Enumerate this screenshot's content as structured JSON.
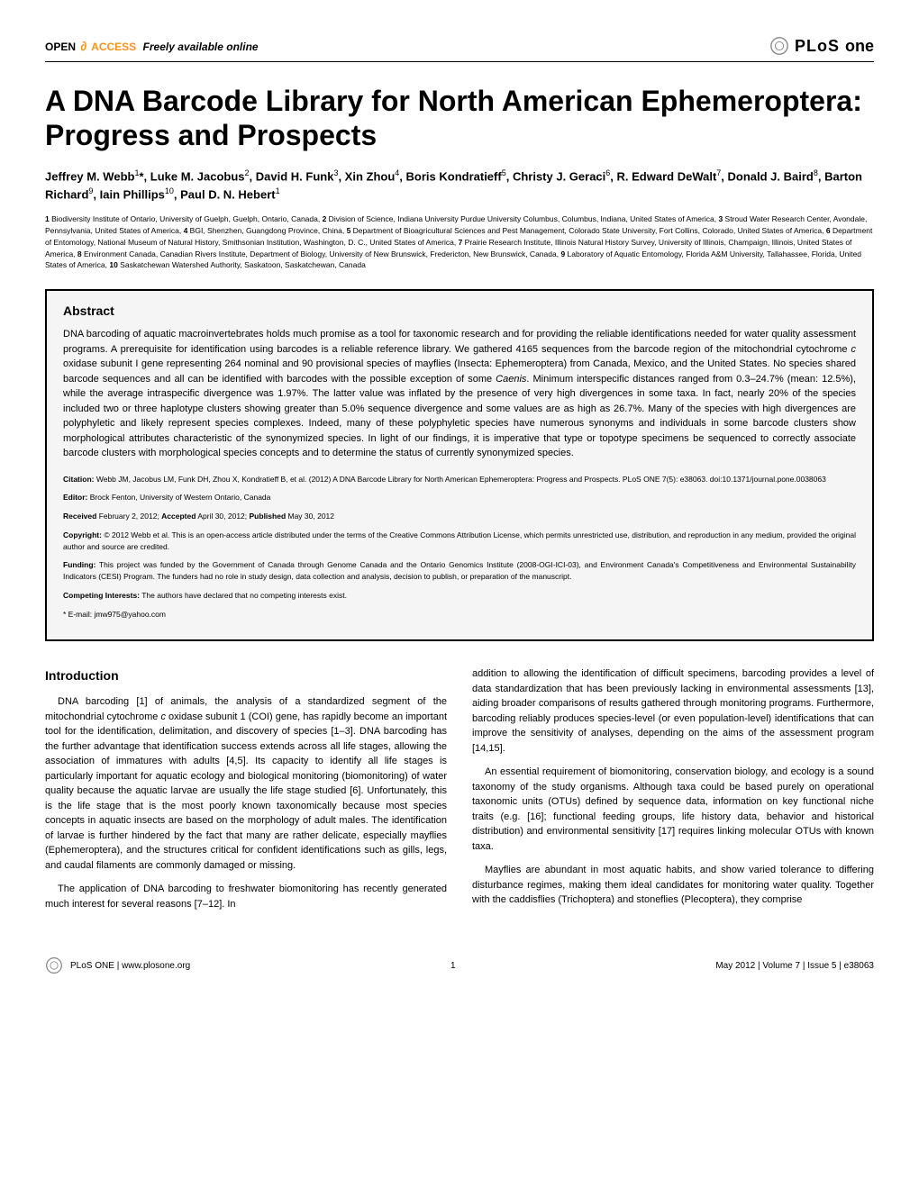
{
  "header": {
    "open_text": "OPEN",
    "access_text": "ACCESS",
    "freely_text": "Freely available online",
    "journal_plos": "PLoS",
    "journal_one": "one"
  },
  "title": "A DNA Barcode Library for North American Ephemeroptera: Progress and Prospects",
  "authors_html": "Jeffrey M. Webb<sup>1</sup>*, Luke M. Jacobus<sup>2</sup>, David H. Funk<sup>3</sup>, Xin Zhou<sup>4</sup>, Boris Kondratieff<sup>5</sup>, Christy J. Geraci<sup>6</sup>, R. Edward DeWalt<sup>7</sup>, Donald J. Baird<sup>8</sup>, Barton Richard<sup>9</sup>, Iain Phillips<sup>10</sup>, Paul D. N. Hebert<sup>1</sup>",
  "affiliations_html": "<b>1</b> Biodiversity Institute of Ontario, University of Guelph, Guelph, Ontario, Canada, <b>2</b> Division of Science, Indiana University Purdue University Columbus, Columbus, Indiana, United States of America, <b>3</b> Stroud Water Research Center, Avondale, Pennsylvania, United States of America, <b>4</b> BGI, Shenzhen, Guangdong Province, China, <b>5</b> Department of Bioagricultural Sciences and Pest Management, Colorado State University, Fort Collins, Colorado, United States of America, <b>6</b> Department of Entomology, National Museum of Natural History, Smithsonian Institution, Washington, D. C., United States of America, <b>7</b> Prairie Research Institute, Illinois Natural History Survey, University of Illinois, Champaign, Illinois, United States of America, <b>8</b> Environment Canada, Canadian Rivers Institute, Department of Biology, University of New Brunswick, Fredericton, New Brunswick, Canada, <b>9</b> Laboratory of Aquatic Entomology, Florida A&M University, Tallahassee, Florida, United States of America, <b>10</b> Saskatchewan Watershed Authority, Saskatoon, Saskatchewan, Canada",
  "abstract": {
    "heading": "Abstract",
    "text_html": "DNA barcoding of aquatic macroinvertebrates holds much promise as a tool for taxonomic research and for providing the reliable identifications needed for water quality assessment programs. A prerequisite for identification using barcodes is a reliable reference library. We gathered 4165 sequences from the barcode region of the mitochondrial cytochrome <i>c</i> oxidase subunit I gene representing 264 nominal and 90 provisional species of mayflies (Insecta: Ephemeroptera) from Canada, Mexico, and the United States. No species shared barcode sequences and all can be identified with barcodes with the possible exception of some <i>Caenis</i>. Minimum interspecific distances ranged from 0.3–24.7% (mean: 12.5%), while the average intraspecific divergence was 1.97%. The latter value was inflated by the presence of very high divergences in some taxa. In fact, nearly 20% of the species included two or three haplotype clusters showing greater than 5.0% sequence divergence and some values are as high as 26.7%. Many of the species with high divergences are polyphyletic and likely represent species complexes. Indeed, many of these polyphyletic species have numerous synonyms and individuals in some barcode clusters show morphological attributes characteristic of the synonymized species. In light of our findings, it is imperative that type or topotype specimens be sequenced to correctly associate barcode clusters with morphological species concepts and to determine the status of currently synonymized species.",
    "citation_html": "<b>Citation:</b> Webb JM, Jacobus LM, Funk DH, Zhou X, Kondratieff B, et al. (2012) A DNA Barcode Library for North American Ephemeroptera: Progress and Prospects. PLoS ONE 7(5): e38063. doi:10.1371/journal.pone.0038063",
    "editor_html": "<b>Editor:</b> Brock Fenton, University of Western Ontario, Canada",
    "received_html": "<b>Received</b> February 2, 2012; <b>Accepted</b> April 30, 2012; <b>Published</b> May 30, 2012",
    "copyright_html": "<b>Copyright:</b> © 2012 Webb et al. This is an open-access article distributed under the terms of the Creative Commons Attribution License, which permits unrestricted use, distribution, and reproduction in any medium, provided the original author and source are credited.",
    "funding_html": "<b>Funding:</b> This project was funded by the Government of Canada through Genome Canada and the Ontario Genomics Institute (2008-OGI-ICI-03), and Environment Canada's Competitiveness and Environmental Sustainability Indicators (CESI) Program. The funders had no role in study design, data collection and analysis, decision to publish, or preparation of the manuscript.",
    "competing_html": "<b>Competing Interests:</b> The authors have declared that no competing interests exist.",
    "email_html": "* E-mail: jmw975@yahoo.com"
  },
  "introduction": {
    "heading": "Introduction",
    "col1_p1_html": "DNA barcoding [1] of animals, the analysis of a standardized segment of the mitochondrial cytochrome <i>c</i> oxidase subunit 1 (COI) gene, has rapidly become an important tool for the identification, delimitation, and discovery of species [1–3]. DNA barcoding has the further advantage that identification success extends across all life stages, allowing the association of immatures with adults [4,5]. Its capacity to identify all life stages is particularly important for aquatic ecology and biological monitoring (biomonitoring) of water quality because the aquatic larvae are usually the life stage studied [6]. Unfortunately, this is the life stage that is the most poorly known taxonomically because most species concepts in aquatic insects are based on the morphology of adult males. The identification of larvae is further hindered by the fact that many are rather delicate, especially mayflies (Ephemeroptera), and the structures critical for confident identifications such as gills, legs, and caudal filaments are commonly damaged or missing.",
    "col1_p2_html": "The application of DNA barcoding to freshwater biomonitoring has recently generated much interest for several reasons [7–12]. In",
    "col2_p1_html": "addition to allowing the identification of difficult specimens, barcoding provides a level of data standardization that has been previously lacking in environmental assessments [13], aiding broader comparisons of results gathered through monitoring programs. Furthermore, barcoding reliably produces species-level (or even population-level) identifications that can improve the sensitivity of analyses, depending on the aims of the assessment program [14,15].",
    "col2_p2_html": "An essential requirement of biomonitoring, conservation biology, and ecology is a sound taxonomy of the study organisms. Although taxa could be based purely on operational taxonomic units (OTUs) defined by sequence data, information on key functional niche traits (e.g. [16]; functional feeding groups, life history data, behavior and historical distribution) and environmental sensitivity [17] requires linking molecular OTUs with known taxa.",
    "col2_p3_html": "Mayflies are abundant in most aquatic habits, and show varied tolerance to differing disturbance regimes, making them ideal candidates for monitoring water quality. Together with the caddisflies (Trichoptera) and stoneflies (Plecoptera), they comprise"
  },
  "footer": {
    "journal_url": "PLoS ONE | www.plosone.org",
    "page_number": "1",
    "issue_info": "May 2012 | Volume 7 | Issue 5 | e38063"
  },
  "colors": {
    "orange": "#f7941d",
    "text": "#000000",
    "background": "#ffffff",
    "abstract_bg": "#f5f5f5"
  }
}
